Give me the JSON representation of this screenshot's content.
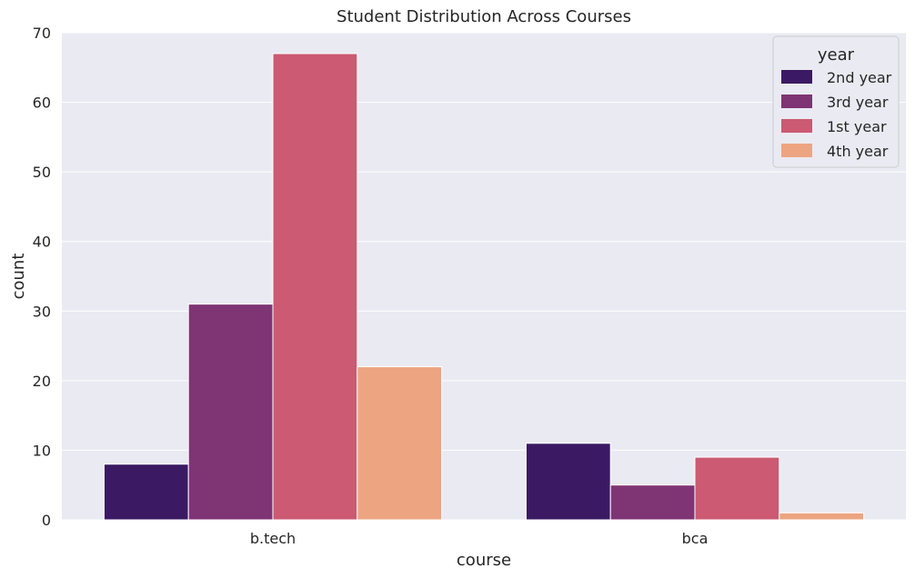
{
  "chart_data": {
    "type": "bar",
    "title": "Student Distribution Across Courses",
    "xlabel": "course",
    "ylabel": "count",
    "categories": [
      "b.tech",
      "bca"
    ],
    "ylim": [
      0,
      70
    ],
    "yticks": [
      0,
      10,
      20,
      30,
      40,
      50,
      60,
      70
    ],
    "grid": true,
    "legend": {
      "title": "year",
      "position": "top-right"
    },
    "series": [
      {
        "name": "2nd year",
        "color": "#3b1a63",
        "values": [
          8,
          11
        ]
      },
      {
        "name": "3rd year",
        "color": "#7f3474",
        "values": [
          31,
          5
        ]
      },
      {
        "name": "1st year",
        "color": "#cb5a72",
        "values": [
          67,
          9
        ]
      },
      {
        "name": "4th year",
        "color": "#eda581",
        "values": [
          22,
          1
        ]
      }
    ],
    "background_color": "#eaeaf2",
    "grid_color": "#ffffff"
  }
}
